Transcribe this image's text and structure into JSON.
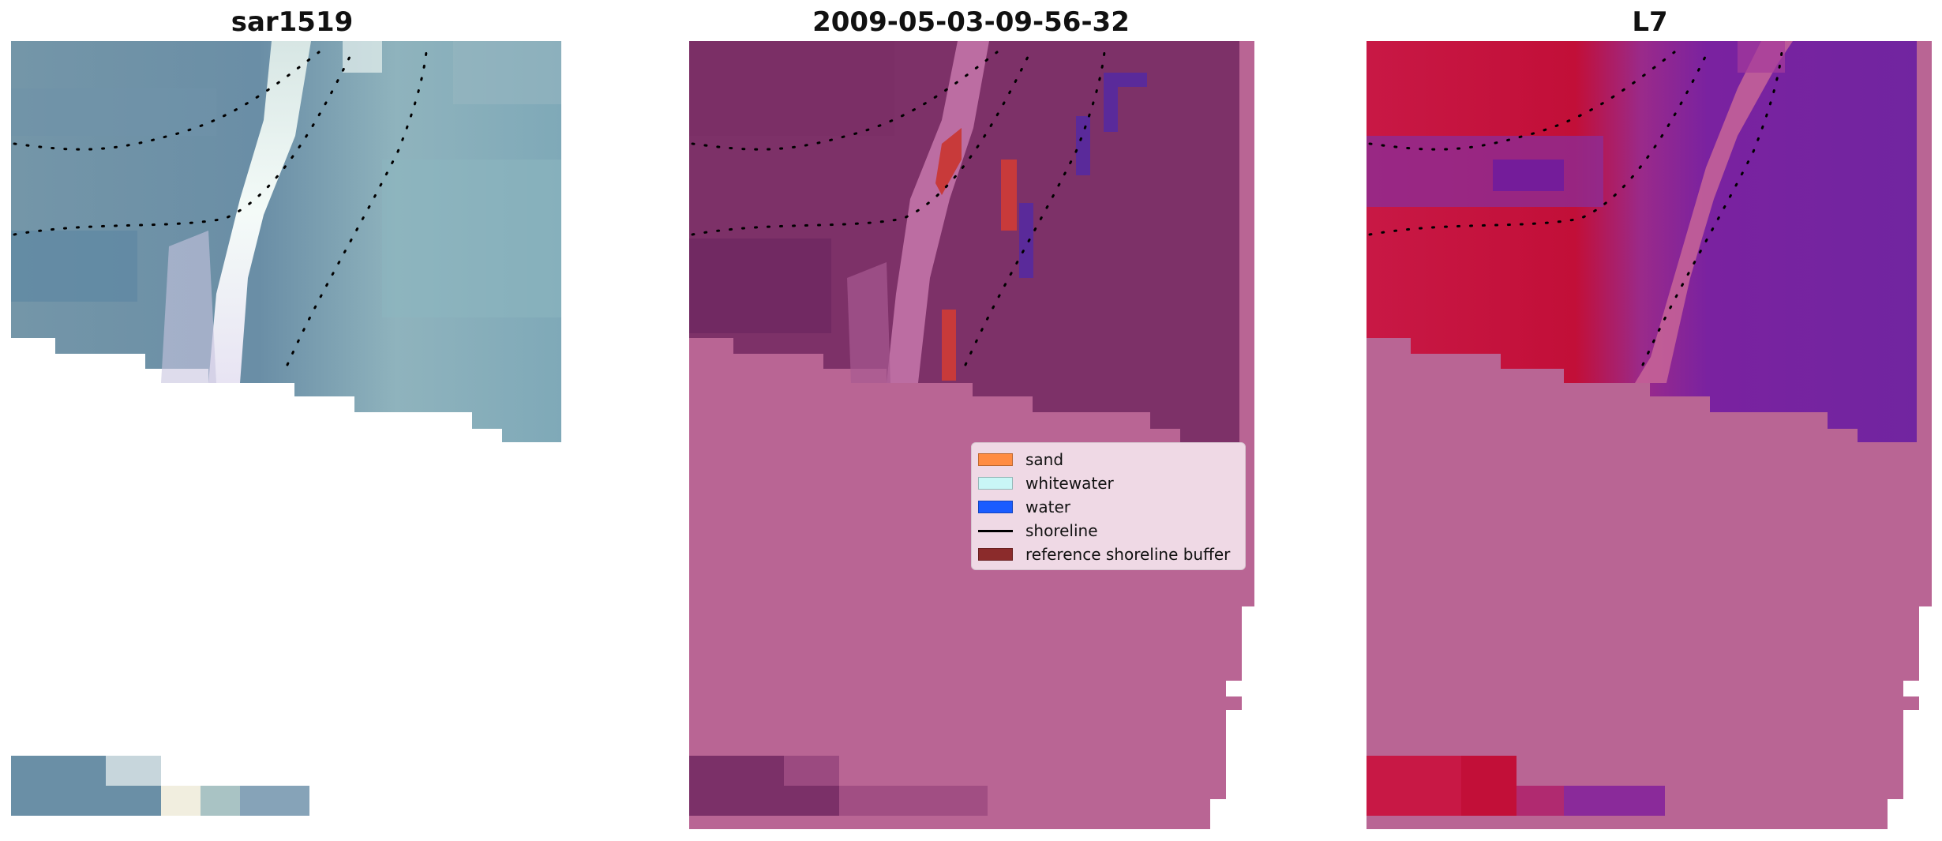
{
  "titles": {
    "left": "sar1519",
    "middle": "2009-05-03-09-56-32",
    "right": "L7"
  },
  "legend": {
    "items": [
      {
        "label": "sand",
        "type": "patch",
        "color": "#ff8c42"
      },
      {
        "label": "whitewater",
        "type": "patch",
        "color": "#c9f6f6"
      },
      {
        "label": "water",
        "type": "patch",
        "color": "#1a5cff"
      },
      {
        "label": "shoreline",
        "type": "line",
        "color": "#000000"
      },
      {
        "label": "reference shoreline buffer",
        "type": "patch",
        "color": "#8b2b2b"
      }
    ]
  },
  "colors": {
    "rgb_water": "#6a8fa6",
    "rgb_whitewater": "#eef4f4",
    "classified_background": "#b96594",
    "classified_dark": "#7a3066",
    "buffer_red": "#c83a3a",
    "water_blue": "#5a2a9a",
    "mndwi_red": "#c8103a",
    "mndwi_purple": "#7a22a0",
    "nodata": "#ffffff"
  }
}
